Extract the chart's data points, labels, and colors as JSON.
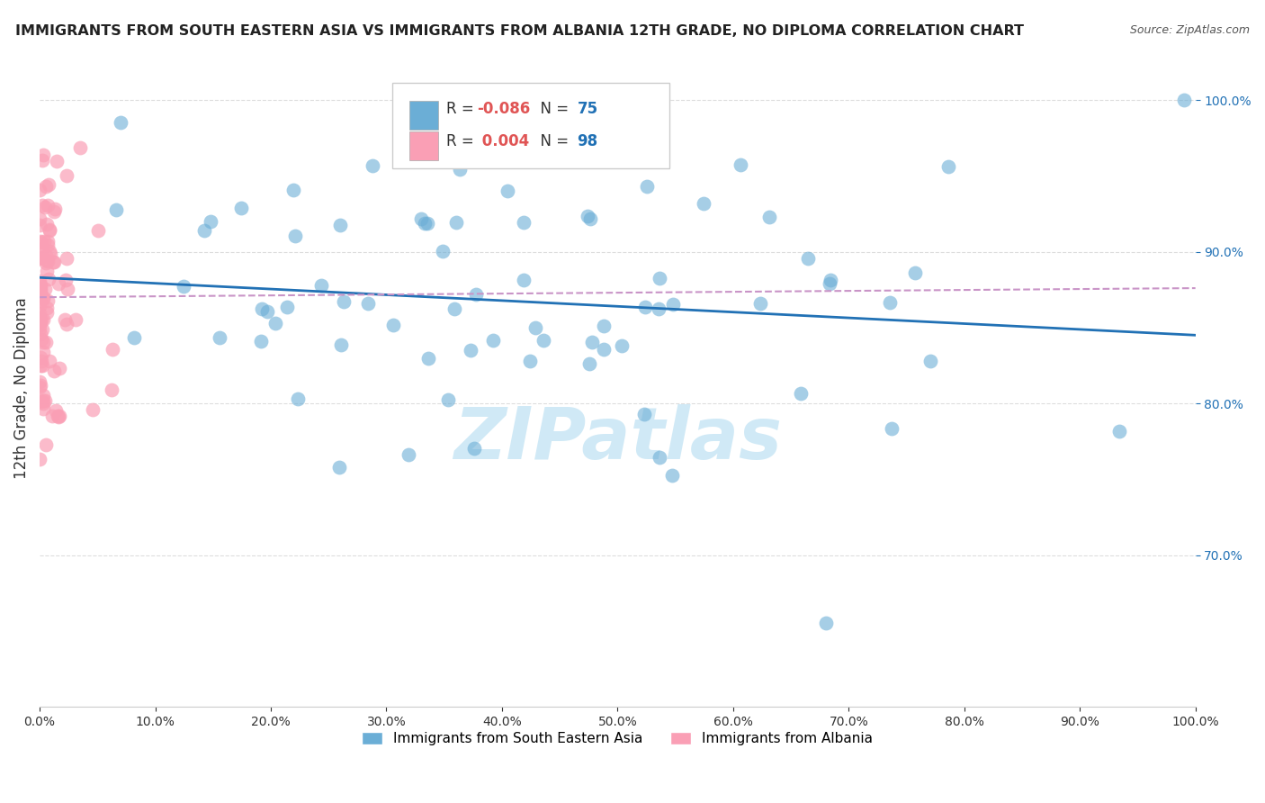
{
  "title": "IMMIGRANTS FROM SOUTH EASTERN ASIA VS IMMIGRANTS FROM ALBANIA 12TH GRADE, NO DIPLOMA CORRELATION CHART",
  "source": "Source: ZipAtlas.com",
  "ylabel": "12th Grade, No Diploma",
  "legend_blue_R": "-0.086",
  "legend_blue_N": "75",
  "legend_pink_R": "0.004",
  "legend_pink_N": "98",
  "legend_blue_label": "Immigrants from South Eastern Asia",
  "legend_pink_label": "Immigrants from Albania",
  "blue_color": "#6baed6",
  "pink_color": "#fa9fb5",
  "blue_line_color": "#2171b5",
  "pink_line_color": "#c994c7",
  "watermark_color": "#c8e6f5",
  "watermark": "ZIPatlas",
  "background_color": "#ffffff",
  "grid_color": "#dddddd",
  "xlim": [
    0.0,
    1.0
  ],
  "ylim": [
    0.6,
    1.02
  ],
  "right_yticks": [
    0.7,
    0.8,
    0.9,
    1.0
  ],
  "xticks": [
    0.0,
    0.1,
    0.2,
    0.3,
    0.4,
    0.5,
    0.6,
    0.7,
    0.8,
    0.9,
    1.0
  ]
}
